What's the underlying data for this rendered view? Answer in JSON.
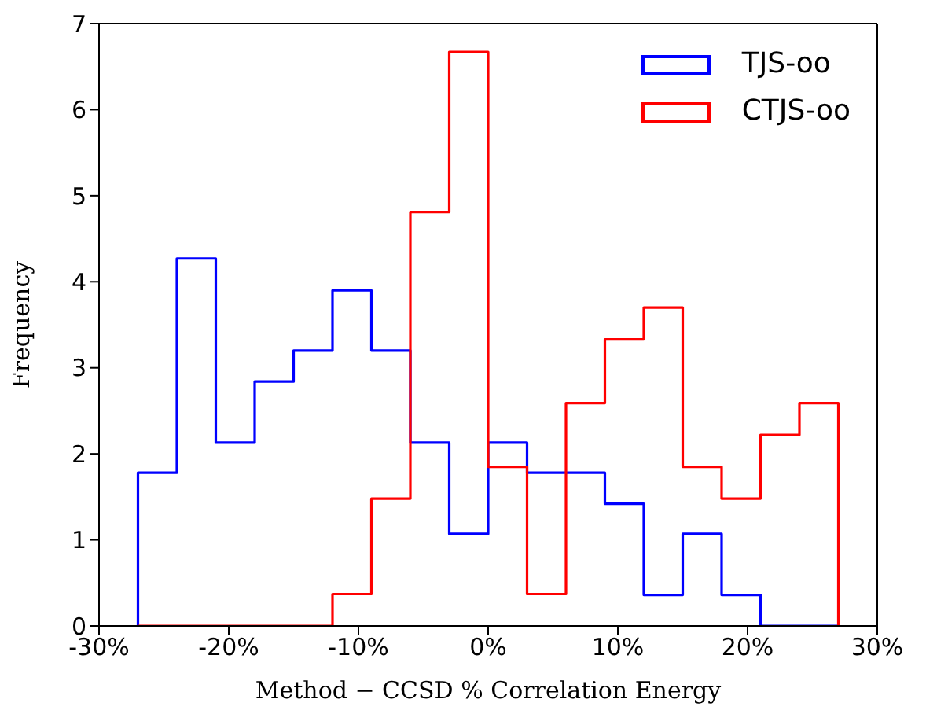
{
  "chart_data": {
    "type": "histogram",
    "xlabel": "Method − CCSD % Correlation Energy",
    "ylabel": "Frequency",
    "bins": [
      -27,
      -24,
      -21,
      -18,
      -15,
      -12,
      -9,
      -6,
      -3,
      0,
      3,
      6,
      9,
      12,
      15,
      18,
      21,
      24,
      27
    ],
    "series": [
      {
        "name": "TJS-oo",
        "color": "#0000ff",
        "values": [
          1.78,
          4.27,
          2.13,
          2.84,
          3.2,
          3.9,
          3.2,
          2.13,
          1.07,
          2.13,
          1.78,
          1.78,
          1.42,
          0.36,
          1.07,
          0.36,
          0,
          0
        ]
      },
      {
        "name": "CTJS-oo",
        "color": "#ff0000",
        "values": [
          0,
          0,
          0,
          0,
          0,
          0.37,
          1.48,
          4.81,
          6.67,
          1.85,
          0.37,
          2.59,
          3.33,
          3.7,
          1.85,
          1.48,
          2.22,
          2.59
        ]
      }
    ],
    "xlim": [
      -30,
      30
    ],
    "xticks": [
      {
        "value": -30,
        "label": "-30%"
      },
      {
        "value": -20,
        "label": "-20%"
      },
      {
        "value": -10,
        "label": "-10%"
      },
      {
        "value": 0,
        "label": "0%"
      },
      {
        "value": 10,
        "label": "10%"
      },
      {
        "value": 20,
        "label": "20%"
      },
      {
        "value": 30,
        "label": "30%"
      }
    ],
    "ylim": [
      0,
      7
    ],
    "yticks": [
      0,
      1,
      2,
      3,
      4,
      5,
      6,
      7
    ],
    "legend": "top right"
  }
}
